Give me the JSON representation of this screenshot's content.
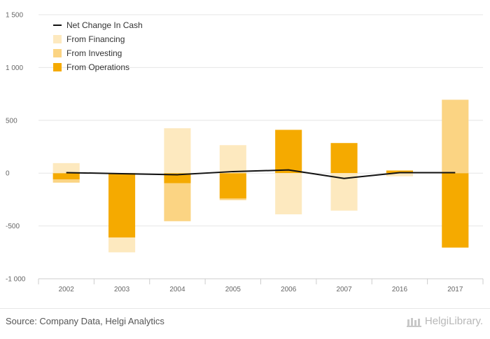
{
  "colors": {
    "financing": "#fde9bf",
    "investing": "#fbd483",
    "operations": "#f5aa00",
    "net": "#111111",
    "grid": "#e6e6e6",
    "axis": "#cccccc"
  },
  "chart_data": {
    "type": "bar",
    "stacked": true,
    "categories": [
      "2002",
      "2003",
      "2004",
      "2005",
      "2006",
      "2007",
      "2016",
      "2017"
    ],
    "ylim": [
      -1000,
      1500
    ],
    "yticks": [
      1500,
      1000,
      500,
      0,
      -500,
      -1000
    ],
    "ytick_labels": [
      "1 500",
      "1 000",
      "500",
      "0",
      "-500",
      "-1 000"
    ],
    "grid": true,
    "legend": "top-left",
    "series": [
      {
        "name": "Net Change In Cash",
        "kind": "line",
        "color_key": "net",
        "values": [
          5,
          -5,
          -15,
          15,
          30,
          -50,
          5,
          5
        ]
      },
      {
        "name": "From Financing",
        "kind": "bar",
        "color_key": "financing",
        "values": [
          95,
          -140,
          425,
          265,
          -390,
          -355,
          -30,
          0
        ]
      },
      {
        "name": "From Investing",
        "kind": "bar",
        "color_key": "investing",
        "values": [
          -30,
          0,
          -360,
          -15,
          0,
          0,
          0,
          695
        ]
      },
      {
        "name": "From Operations",
        "kind": "bar",
        "color_key": "operations",
        "values": [
          -60,
          -610,
          -95,
          -240,
          410,
          285,
          25,
          -705
        ]
      }
    ]
  },
  "footer": {
    "source": "Source: Company Data, Helgi Analytics",
    "brand": "HelgiLibrary."
  }
}
